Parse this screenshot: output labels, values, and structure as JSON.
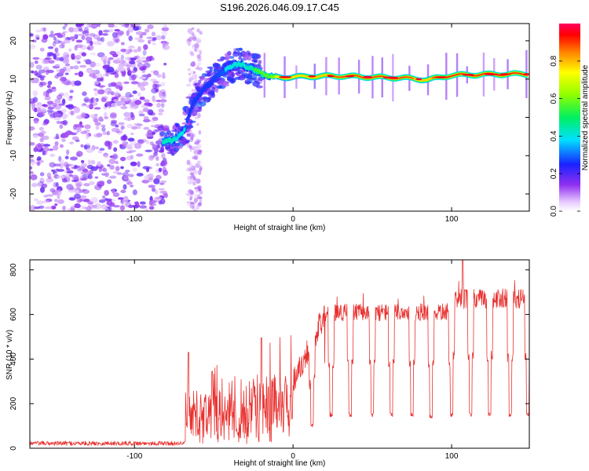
{
  "title": "S196.2026.046.09.17.C45",
  "chart_data": [
    {
      "type": "heatmap",
      "xlabel": "Height of straight line (km)",
      "ylabel": "Frequency (Hz)",
      "xlim": [
        -166,
        149
      ],
      "ylim": [
        -24.5,
        24.5
      ],
      "xticks": [
        -100,
        0,
        100
      ],
      "yticks": [
        -20,
        -10,
        0,
        10,
        20
      ],
      "colorbar": {
        "label": "Normalized spectral amplitude",
        "range": [
          0.0,
          1.0
        ],
        "ticks": [
          0.0,
          0.2,
          0.4,
          0.6,
          0.8
        ],
        "tick_labels": [
          "0.0",
          "0.2",
          "0.4",
          "0.6",
          "0.8"
        ],
        "colormap": "rainbow"
      },
      "ridge": {
        "x": [
          -82,
          -76,
          -72,
          -68,
          -66,
          -64,
          -62,
          -58,
          -52,
          -46,
          -40,
          -34,
          -28,
          -22,
          -18,
          -10,
          0,
          10,
          30,
          50,
          70,
          85,
          90,
          100,
          120,
          140,
          148
        ],
        "y": [
          -6.5,
          -6.0,
          -5.0,
          -3.0,
          0.0,
          2.5,
          4.5,
          6.5,
          9.0,
          11.5,
          13.0,
          14.0,
          13.0,
          12.0,
          11.0,
          10.5,
          10.5,
          10.7,
          10.8,
          10.5,
          10.3,
          9.8,
          10.2,
          11.0,
          11.2,
          11.3,
          11.3
        ],
        "amplitude": [
          0.5,
          0.5,
          0.4,
          0.4,
          0.3,
          0.3,
          0.3,
          0.3,
          0.3,
          0.35,
          0.4,
          0.45,
          0.5,
          0.55,
          0.6,
          0.75,
          0.8,
          0.85,
          0.9,
          0.9,
          0.9,
          0.85,
          0.9,
          0.95,
          0.95,
          0.95,
          0.95
        ]
      },
      "noise_region": {
        "x_range": [
          -166,
          -80
        ],
        "y_range": [
          -24.5,
          24.5
        ],
        "amplitude": 0.15
      }
    },
    {
      "type": "line",
      "xlabel": "Height of straight line (km)",
      "ylabel": "SNR (10 * v/v)",
      "xlim": [
        -166,
        149
      ],
      "ylim": [
        0,
        845
      ],
      "xticks": [
        -100,
        0,
        100
      ],
      "yticks": [
        0,
        200,
        400,
        600,
        800
      ],
      "color": "#e8312f",
      "segments": [
        {
          "x_range": [
            -166,
            -68
          ],
          "baseline": 22,
          "noise": 10
        },
        {
          "x_range": [
            -68,
            -30
          ],
          "baseline": 150,
          "noise": 110
        },
        {
          "x_range": [
            -30,
            0
          ],
          "baseline": 200,
          "noise": 130
        },
        {
          "x_range": [
            0,
            20
          ],
          "baseline": 420,
          "noise": 100
        },
        {
          "x_range": [
            20,
            100
          ],
          "baseline": 610,
          "noise": 40
        },
        {
          "x_range": [
            100,
            149
          ],
          "baseline": 670,
          "noise": 45
        }
      ],
      "dips": [
        {
          "x": 12,
          "depth": 100
        },
        {
          "x": 24,
          "depth": 150
        },
        {
          "x": 36,
          "depth": 150
        },
        {
          "x": 50,
          "depth": 150
        },
        {
          "x": 62,
          "depth": 150
        },
        {
          "x": 75,
          "depth": 150
        },
        {
          "x": 87,
          "depth": 140
        },
        {
          "x": 100,
          "depth": 150
        },
        {
          "x": 112,
          "depth": 150
        },
        {
          "x": 124,
          "depth": 150
        },
        {
          "x": 137,
          "depth": 150
        },
        {
          "x": 148,
          "depth": 150
        }
      ],
      "peaks": [
        {
          "x": -66,
          "value": 430
        },
        {
          "x": -51,
          "value": 345
        },
        {
          "x": -20,
          "value": 495
        },
        {
          "x": 107,
          "value": 845
        }
      ]
    }
  ]
}
